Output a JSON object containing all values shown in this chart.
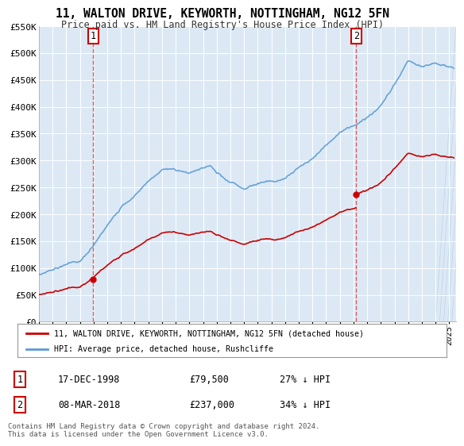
{
  "title": "11, WALTON DRIVE, KEYWORTH, NOTTINGHAM, NG12 5FN",
  "subtitle": "Price paid vs. HM Land Registry's House Price Index (HPI)",
  "legend_line1": "11, WALTON DRIVE, KEYWORTH, NOTTINGHAM, NG12 5FN (detached house)",
  "legend_line2": "HPI: Average price, detached house, Rushcliffe",
  "footnote": "Contains HM Land Registry data © Crown copyright and database right 2024.\nThis data is licensed under the Open Government Licence v3.0.",
  "marker1_date": "17-DEC-1998",
  "marker1_price": "£79,500",
  "marker1_hpi": "27% ↓ HPI",
  "marker2_date": "08-MAR-2018",
  "marker2_price": "£237,000",
  "marker2_hpi": "34% ↓ HPI",
  "price_color": "#cc0000",
  "hpi_color": "#5b9bd5",
  "plot_bg": "#dce9f5",
  "ylim": [
    0,
    550000
  ],
  "yticks": [
    0,
    50000,
    100000,
    150000,
    200000,
    250000,
    300000,
    350000,
    400000,
    450000,
    500000,
    550000
  ],
  "xstart": 1995.0,
  "xend": 2025.5
}
